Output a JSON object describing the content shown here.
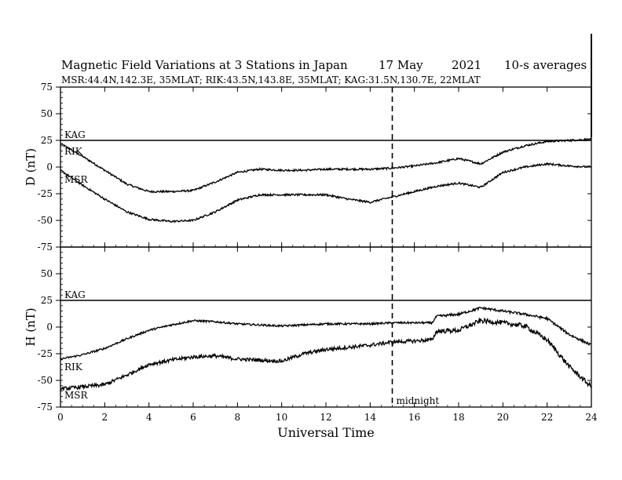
{
  "header": {
    "title": "Magnetic Field Variations at 3 Stations in Japan",
    "date": "17 May",
    "year": "2021",
    "averaging": "10-s averages",
    "stations_line": "MSR:44.4N,142.3E, 35MLAT;  RIK:43.5N,143.8E, 35MLAT;  KAG:31.5N,130.7E, 22MLAT"
  },
  "annotations": {
    "midnight_label": "midnight",
    "midnight_ut": 15
  },
  "chart_data": [
    {
      "type": "line",
      "panel": "D",
      "ylabel": "D (nT)",
      "xlabel": "",
      "ylim": [
        -75,
        75
      ],
      "xlim": [
        0,
        24
      ],
      "yticks": [
        75,
        50,
        25,
        0,
        -25,
        -50,
        -75
      ],
      "xticks": [
        0,
        2,
        4,
        6,
        8,
        10,
        12,
        14,
        16,
        18,
        20,
        22,
        24
      ],
      "grid": false,
      "series": [
        {
          "name": "KAG",
          "x": [
            0,
            24
          ],
          "values": [
            25,
            25
          ]
        },
        {
          "name": "RIK",
          "x": [
            0,
            1,
            2,
            3,
            4,
            5,
            6,
            7,
            8,
            9,
            10,
            11,
            12,
            13,
            14,
            15,
            16,
            17,
            18,
            19,
            20,
            21,
            22,
            23,
            24
          ],
          "values": [
            22,
            10,
            -3,
            -16,
            -23,
            -23,
            -22,
            -14,
            -5,
            -2,
            -3,
            -3,
            -2,
            -2,
            -2,
            -1,
            1,
            4,
            8,
            3,
            14,
            20,
            24,
            25,
            26
          ]
        },
        {
          "name": "MSR",
          "x": [
            0,
            1,
            2,
            3,
            4,
            5,
            6,
            7,
            8,
            9,
            10,
            11,
            12,
            13,
            14,
            15,
            16,
            17,
            18,
            19,
            20,
            21,
            22,
            23,
            24
          ],
          "values": [
            -3,
            -17,
            -30,
            -42,
            -49,
            -51,
            -50,
            -42,
            -31,
            -26,
            -26,
            -26,
            -26,
            -30,
            -33,
            -28,
            -23,
            -18,
            -15,
            -19,
            -5,
            0,
            3,
            1,
            0
          ]
        }
      ]
    },
    {
      "type": "line",
      "panel": "H",
      "ylabel": "H (nT)",
      "xlabel": "Universal Time",
      "ylim": [
        -75,
        75
      ],
      "xlim": [
        0,
        24
      ],
      "yticks": [
        75,
        50,
        25,
        0,
        -25,
        -50,
        -75
      ],
      "xticks": [
        0,
        2,
        4,
        6,
        8,
        10,
        12,
        14,
        16,
        18,
        20,
        22,
        24
      ],
      "grid": false,
      "series": [
        {
          "name": "KAG",
          "x": [
            0,
            24
          ],
          "values": [
            25,
            25
          ]
        },
        {
          "name": "RIK",
          "x": [
            0,
            1,
            2,
            3,
            4,
            5,
            6,
            7,
            8,
            9,
            10,
            11,
            12,
            13,
            14,
            15,
            16,
            16.8,
            17,
            18,
            19,
            20,
            21,
            22,
            23,
            24
          ],
          "values": [
            -30,
            -26,
            -20,
            -11,
            -3,
            2,
            6,
            5,
            3,
            2,
            1,
            2,
            3,
            3,
            3,
            4,
            4,
            4,
            10,
            12,
            18,
            15,
            12,
            8,
            -7,
            -17
          ]
        },
        {
          "name": "MSR",
          "x": [
            0,
            1,
            2,
            3,
            4,
            5,
            6,
            7,
            8,
            9,
            10,
            11,
            12,
            13,
            14,
            15,
            16,
            16.8,
            17,
            18,
            19,
            20,
            21,
            22,
            23,
            24
          ],
          "values": [
            -58,
            -56,
            -54,
            -45,
            -35,
            -31,
            -28,
            -27,
            -30,
            -31,
            -32,
            -25,
            -21,
            -19,
            -17,
            -14,
            -13,
            -12,
            -4,
            -3,
            6,
            4,
            1,
            -12,
            -37,
            -56
          ]
        }
      ]
    }
  ]
}
